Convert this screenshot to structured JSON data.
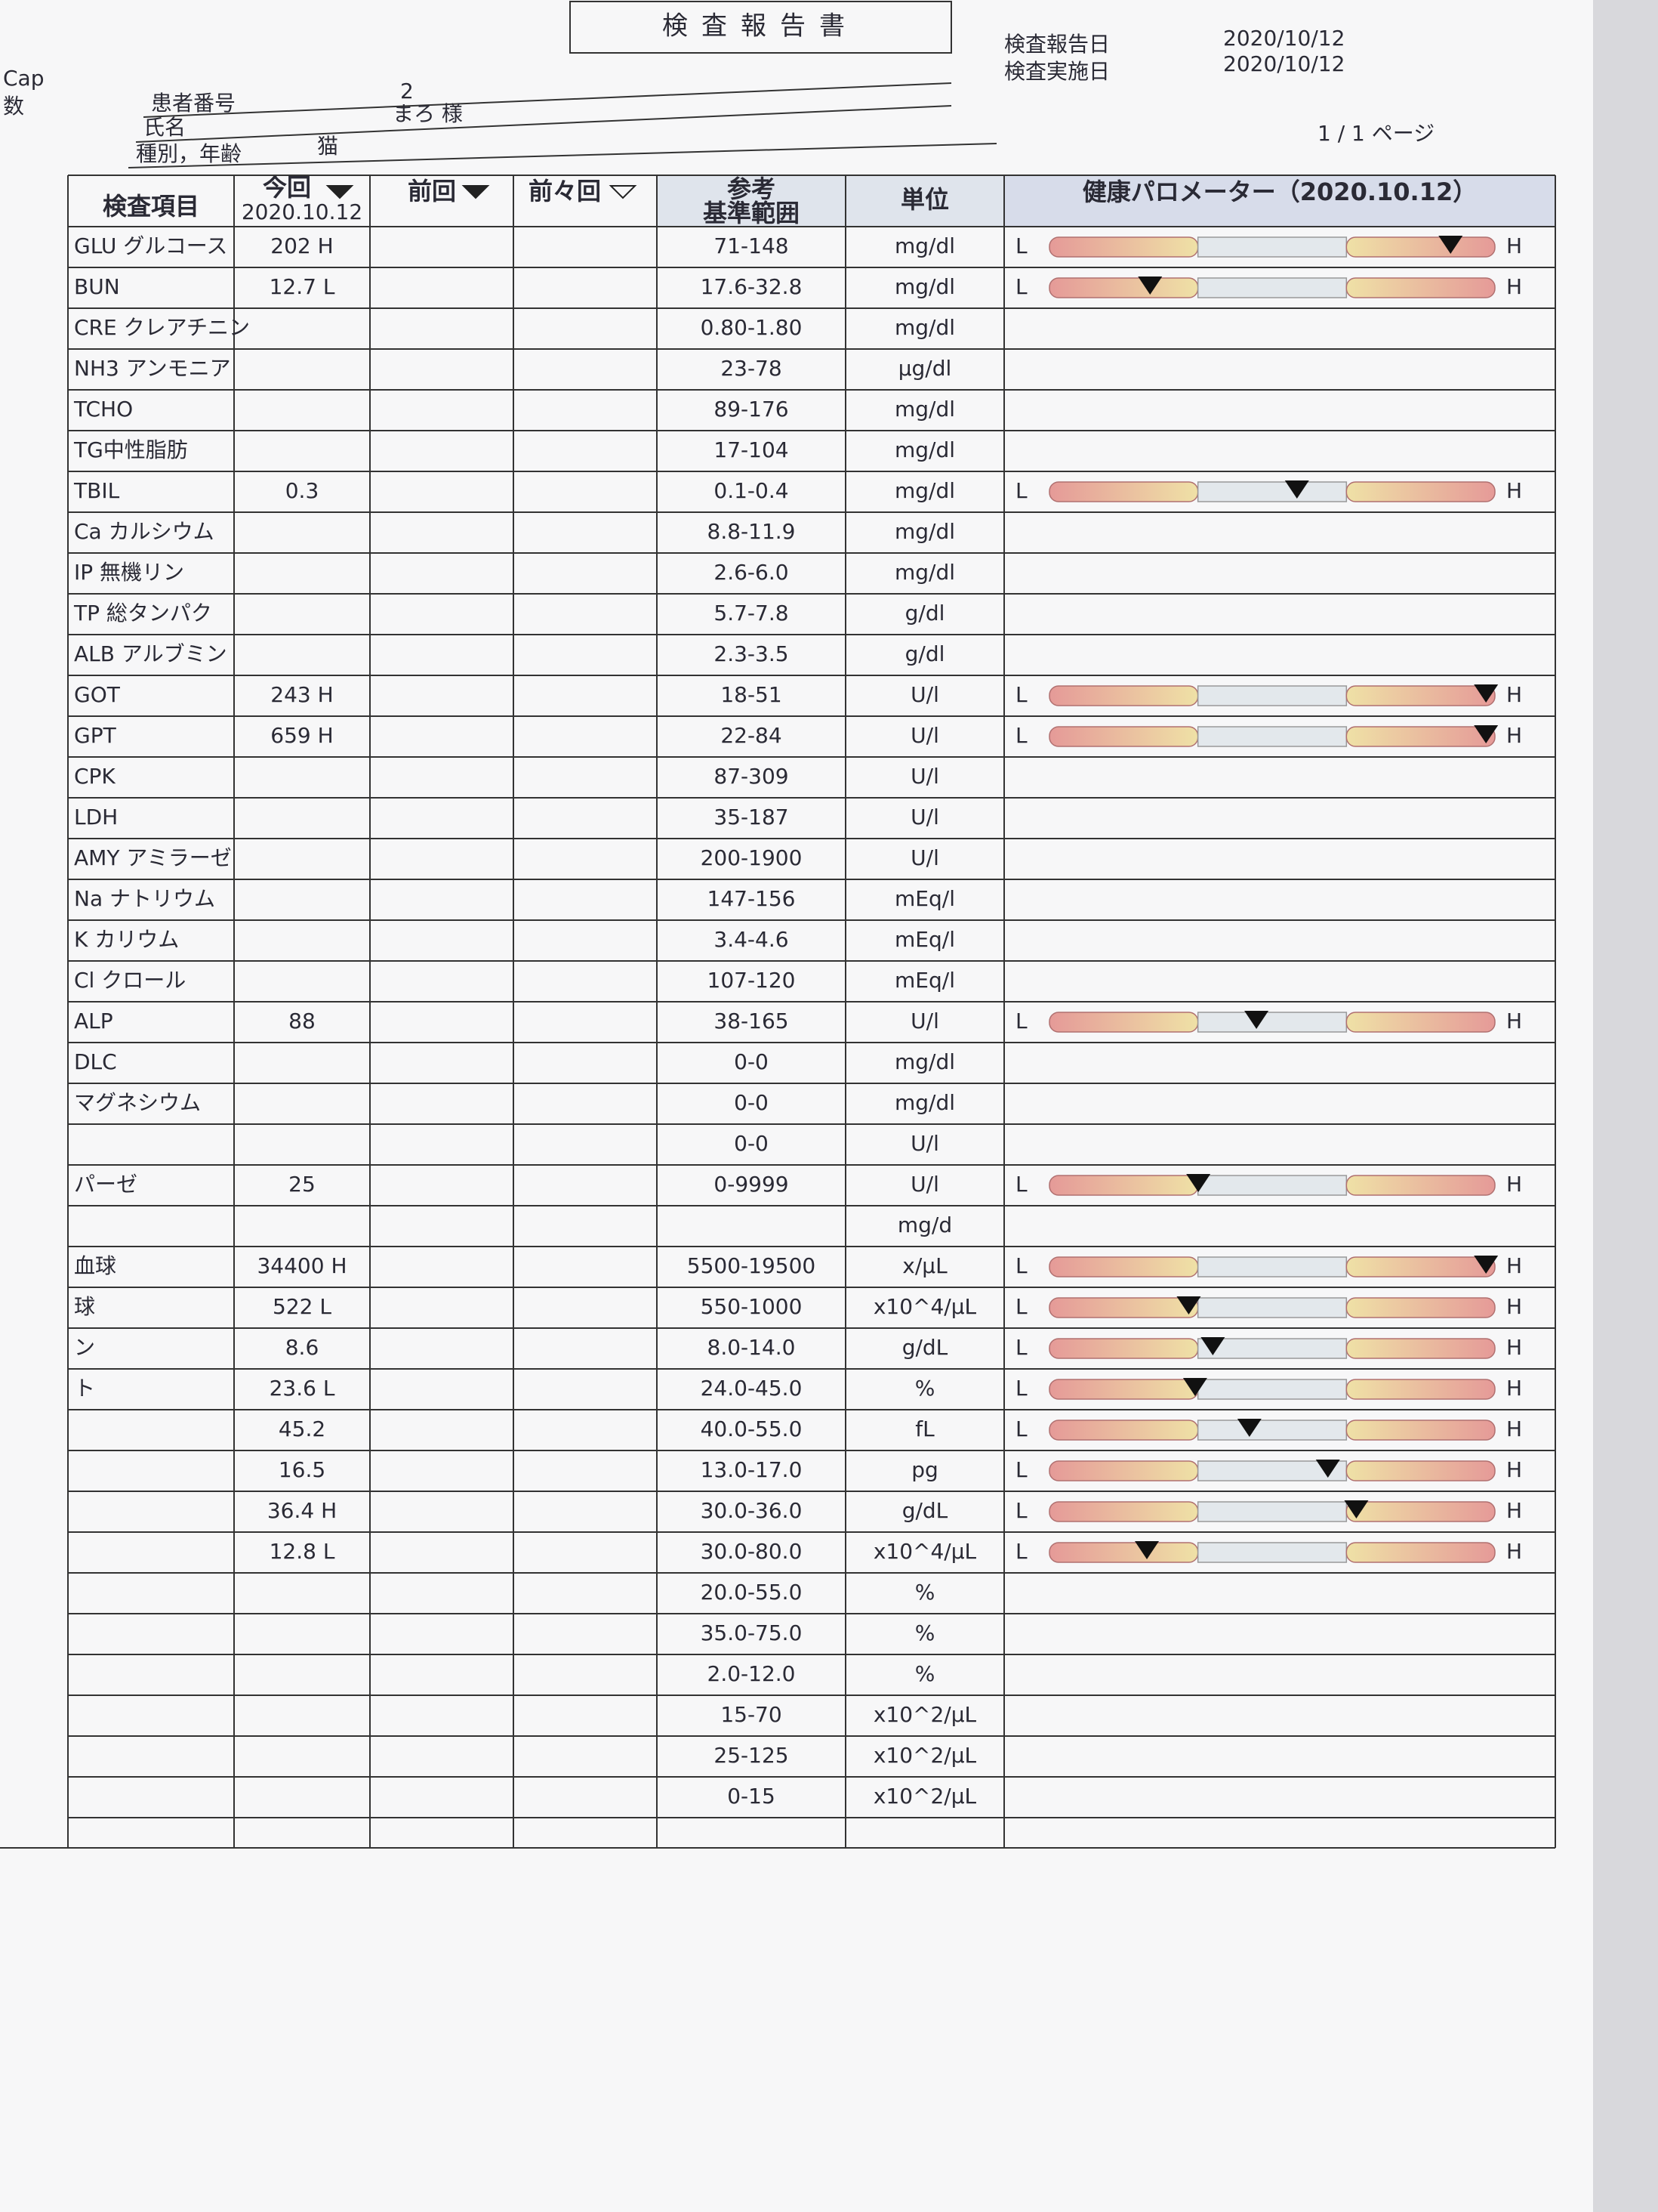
{
  "margin": {
    "left_top": "Cap",
    "left_second": "数"
  },
  "header": {
    "title": "検査報告書",
    "report_date_label": "検査報告日",
    "report_date": "2020/10/12",
    "exam_date_label": "検査実施日",
    "exam_date": "2020/10/12",
    "patient_no_label": "患者番号",
    "patient_no": "2",
    "name_label": "氏名",
    "name": "まろ 様",
    "species_age_label": "種別，年齢",
    "species": "猫",
    "page": "1 / 1 ページ"
  },
  "table": {
    "columns": {
      "item": "検査項目",
      "current": "今回",
      "current_date": "2020.10.12",
      "previous": "前回",
      "before_previous": "前々回",
      "range_top": "参考",
      "range_bottom": "基準範囲",
      "unit": "単位",
      "meter": "健康パロメーター（2020.10.12）"
    },
    "meter_labels": {
      "low": "L",
      "high": "H"
    },
    "rows": [
      {
        "item": "GLU グルコース",
        "current": "202 H",
        "range": "71-148",
        "unit": "mg/dl",
        "meter": true
      },
      {
        "item": "BUN",
        "current": "12.7 L",
        "range": "17.6-32.8",
        "unit": "mg/dl",
        "meter": true
      },
      {
        "item": "CRE クレアチニン",
        "range": "0.80-1.80",
        "unit": "mg/dl"
      },
      {
        "item": "NH3 アンモニア",
        "range": "23-78",
        "unit": "μg/dl"
      },
      {
        "item": "TCHO",
        "range": "89-176",
        "unit": "mg/dl"
      },
      {
        "item": "TG中性脂肪",
        "range": "17-104",
        "unit": "mg/dl"
      },
      {
        "item": "TBIL",
        "current": "0.3",
        "range": "0.1-0.4",
        "unit": "mg/dl",
        "meter": true
      },
      {
        "item": "Ca カルシウム",
        "range": "8.8-11.9",
        "unit": "mg/dl"
      },
      {
        "item": "IP 無機リン",
        "range": "2.6-6.0",
        "unit": "mg/dl"
      },
      {
        "item": "TP 総タンパク",
        "range": "5.7-7.8",
        "unit": "g/dl"
      },
      {
        "item": "ALB アルブミン",
        "range": "2.3-3.5",
        "unit": "g/dl"
      },
      {
        "item": "GOT",
        "current": "243 H",
        "range": "18-51",
        "unit": "U/l",
        "meter": true
      },
      {
        "item": "GPT",
        "current": "659 H",
        "range": "22-84",
        "unit": "U/l",
        "meter": true
      },
      {
        "item": "CPK",
        "range": "87-309",
        "unit": "U/l"
      },
      {
        "item": "LDH",
        "range": "35-187",
        "unit": "U/l"
      },
      {
        "item": "AMY アミラーゼ",
        "range": "200-1900",
        "unit": "U/l"
      },
      {
        "item": "Na ナトリウム",
        "range": "147-156",
        "unit": "mEq/l"
      },
      {
        "item": "K カリウム",
        "range": "3.4-4.6",
        "unit": "mEq/l"
      },
      {
        "item": "Cl クロール",
        "range": "107-120",
        "unit": "mEq/l"
      },
      {
        "item": "ALP",
        "current": "88",
        "range": "38-165",
        "unit": "U/l",
        "meter": true
      },
      {
        "item": "DLC",
        "range": "0-0",
        "unit": "mg/dl"
      },
      {
        "item": "マグネシウム",
        "range": "0-0",
        "unit": "mg/dl"
      },
      {
        "range": "0-0",
        "unit": "U/l"
      },
      {
        "item": "パーゼ",
        "current": "25",
        "range": "0-9999",
        "unit": "U/l",
        "meter": true
      },
      {
        "unit": "mg/d"
      },
      {
        "item": "血球",
        "current": "34400 H",
        "range": "5500-19500",
        "unit": "x/μL",
        "meter": true
      },
      {
        "item": "球",
        "current": "522 L",
        "range": "550-1000",
        "unit": "x10^4/μL",
        "meter": true
      },
      {
        "item": "ン",
        "current": "8.6",
        "range": "8.0-14.0",
        "unit": "g/dL",
        "meter": true
      },
      {
        "item": "ト",
        "current": "23.6 L",
        "range": "24.0-45.0",
        "unit": "%",
        "meter": true
      },
      {
        "current": "45.2",
        "range": "40.0-55.0",
        "unit": "fL",
        "meter": true
      },
      {
        "current": "16.5",
        "range": "13.0-17.0",
        "unit": "pg",
        "meter": true
      },
      {
        "current": "36.4 H",
        "range": "30.0-36.0",
        "unit": "g/dL",
        "meter": true
      },
      {
        "current": "12.8 L",
        "range": "30.0-80.0",
        "unit": "x10^4/μL",
        "meter": true
      },
      {
        "range": "20.0-55.0",
        "unit": "%"
      },
      {
        "range": "35.0-75.0",
        "unit": "%"
      },
      {
        "range": "2.0-12.0",
        "unit": "%"
      },
      {
        "range": "15-70",
        "unit": "x10^2/μL"
      },
      {
        "range": "25-125",
        "unit": "x10^2/μL"
      },
      {
        "range": "0-15",
        "unit": "x10^2/μL"
      }
    ]
  }
}
